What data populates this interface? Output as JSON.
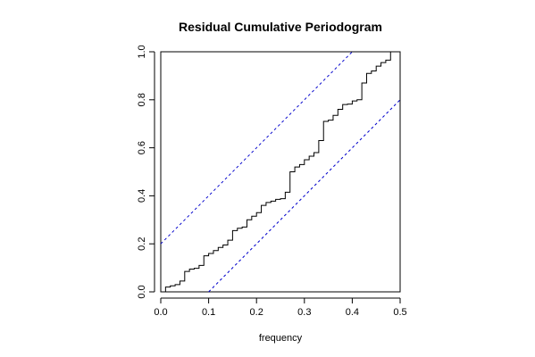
{
  "chart_data": {
    "type": "line",
    "title": "Residual Cumulative Periodogram",
    "xlabel": "frequency",
    "ylabel": "",
    "xlim": [
      0,
      0.5
    ],
    "ylim": [
      0,
      1
    ],
    "x_ticks": [
      "0.0",
      "0.1",
      "0.2",
      "0.3",
      "0.4",
      "0.5"
    ],
    "y_ticks": [
      "0.0",
      "0.2",
      "0.4",
      "0.6",
      "0.8",
      "1.0"
    ],
    "grid": false,
    "legend": "none",
    "colors": {
      "step": "#000000",
      "bounds": "#0000cc"
    },
    "series": [
      {
        "style": "step",
        "x": [
          0.0,
          0.01,
          0.02,
          0.03,
          0.04,
          0.05,
          0.06,
          0.07,
          0.08,
          0.09,
          0.1,
          0.11,
          0.12,
          0.13,
          0.14,
          0.15,
          0.16,
          0.17,
          0.18,
          0.19,
          0.2,
          0.21,
          0.22,
          0.23,
          0.24,
          0.25,
          0.26,
          0.27,
          0.28,
          0.29,
          0.3,
          0.31,
          0.32,
          0.33,
          0.34,
          0.35,
          0.36,
          0.37,
          0.38,
          0.39,
          0.4,
          0.41,
          0.42,
          0.43,
          0.44,
          0.45,
          0.46,
          0.47,
          0.48,
          0.49,
          0.5
        ],
        "y": [
          0.0,
          0.02,
          0.025,
          0.03,
          0.045,
          0.085,
          0.095,
          0.098,
          0.11,
          0.15,
          0.16,
          0.172,
          0.185,
          0.195,
          0.215,
          0.255,
          0.265,
          0.27,
          0.3,
          0.315,
          0.33,
          0.36,
          0.372,
          0.378,
          0.385,
          0.388,
          0.415,
          0.5,
          0.52,
          0.53,
          0.55,
          0.565,
          0.58,
          0.63,
          0.71,
          0.715,
          0.735,
          0.76,
          0.78,
          0.782,
          0.795,
          0.8,
          0.87,
          0.91,
          0.92,
          0.94,
          0.955,
          0.965,
          1.0,
          1.0,
          1.0
        ]
      },
      {
        "style": "dashed",
        "x": [
          0.0,
          0.4
        ],
        "y": [
          0.2,
          1.0
        ]
      },
      {
        "style": "dashed",
        "x": [
          0.1,
          0.5
        ],
        "y": [
          0.0,
          0.8
        ]
      }
    ]
  }
}
